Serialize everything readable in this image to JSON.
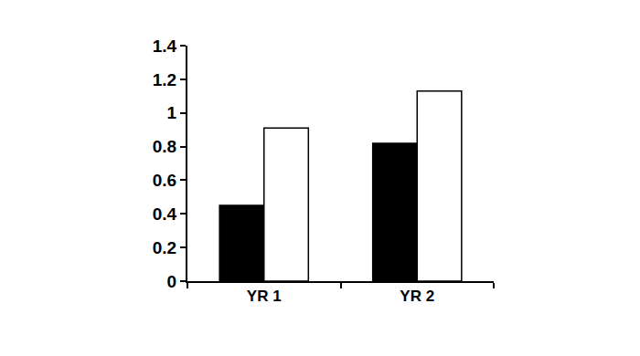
{
  "chart_data": {
    "type": "bar",
    "categories": [
      "YR 1",
      "YR 2"
    ],
    "series": [
      {
        "color": "#000000",
        "values": [
          0.45,
          0.82
        ]
      },
      {
        "color": "#ffffff",
        "values": [
          0.91,
          1.13
        ]
      }
    ],
    "ylim": [
      0,
      1.4
    ],
    "yticks": [
      0,
      0.2,
      0.4,
      0.6,
      0.8,
      1,
      1.2,
      1.4
    ],
    "grid": false
  }
}
